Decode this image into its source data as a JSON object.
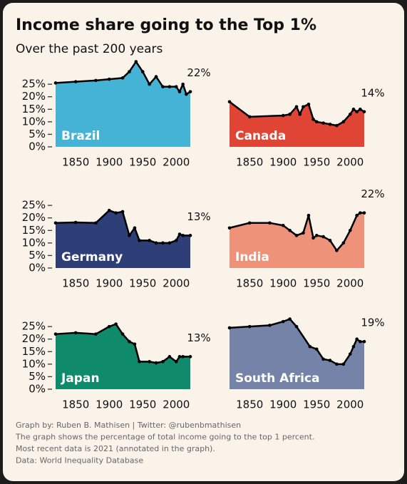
{
  "title": "Income share going to the Top 1%",
  "subtitle": "Over the past 200 years",
  "footer": [
    "Graph by: Ruben B. Mathisen | Twitter: @rubenbmathisen",
    "The graph shows the percentage of total income going to the top 1 percent.",
    "Most recent data is 2021 (annotated in the graph).",
    "Data: World Inequality Database"
  ],
  "chart_data": [
    {
      "type": "area",
      "title": "Brazil",
      "color": "#45b3d6",
      "end_label": "22%",
      "x": [
        1820,
        1850,
        1880,
        1900,
        1920,
        1930,
        1940,
        1950,
        1960,
        1970,
        1980,
        1990,
        2000,
        2005,
        2010,
        2015,
        2021
      ],
      "values": [
        25.5,
        26,
        26.5,
        27,
        27.5,
        30,
        34,
        30,
        25,
        28,
        24,
        24,
        24,
        22,
        25,
        21,
        22
      ],
      "xlim": [
        1820,
        2021
      ],
      "xticks": [
        1850,
        1900,
        1950,
        2000
      ],
      "ylim": [
        0,
        35
      ],
      "yticks": [
        {
          "value": 0,
          "label": "0%"
        },
        {
          "value": 5,
          "label": "5%"
        },
        {
          "value": 10,
          "label": "10%"
        },
        {
          "value": 15,
          "label": "15%"
        },
        {
          "value": 20,
          "label": "20%"
        },
        {
          "value": 25,
          "label": "25%"
        }
      ]
    },
    {
      "type": "area",
      "title": "Canada",
      "color": "#e04434",
      "end_label": "14%",
      "x": [
        1820,
        1850,
        1900,
        1910,
        1920,
        1925,
        1930,
        1938,
        1945,
        1950,
        1960,
        1970,
        1980,
        1990,
        2000,
        2005,
        2010,
        2015,
        2021
      ],
      "values": [
        18,
        12,
        12.5,
        13,
        16,
        13,
        16,
        17,
        11,
        10,
        9.5,
        9,
        8.5,
        10,
        13,
        15,
        14,
        15,
        14
      ],
      "xlim": [
        1820,
        2021
      ],
      "xticks": [
        1850,
        1900,
        1950,
        2000
      ],
      "ylim": [
        0,
        35
      ]
    },
    {
      "type": "area",
      "title": "Germany",
      "color": "#2e3f78",
      "end_label": "13%",
      "x": [
        1820,
        1850,
        1880,
        1900,
        1910,
        1920,
        1930,
        1938,
        1945,
        1960,
        1970,
        1980,
        1990,
        2000,
        2005,
        2010,
        2021
      ],
      "values": [
        18,
        18.2,
        18,
        23,
        22,
        22.5,
        13,
        16,
        11,
        11,
        10,
        10,
        10,
        11,
        13.5,
        13,
        13
      ],
      "xlim": [
        1820,
        2021
      ],
      "xticks": [
        1850,
        1900,
        1950,
        2000
      ],
      "ylim": [
        0,
        35
      ],
      "yticks": [
        {
          "value": 0,
          "label": "0%"
        },
        {
          "value": 5,
          "label": "5%"
        },
        {
          "value": 10,
          "label": "10%"
        },
        {
          "value": 15,
          "label": "15%"
        },
        {
          "value": 20,
          "label": "20%"
        },
        {
          "value": 25,
          "label": "25%"
        }
      ]
    },
    {
      "type": "area",
      "title": "India",
      "color": "#ef927a",
      "end_label": "22%",
      "x": [
        1820,
        1850,
        1880,
        1900,
        1910,
        1920,
        1930,
        1938,
        1945,
        1950,
        1960,
        1970,
        1980,
        1990,
        2000,
        2010,
        2015,
        2021
      ],
      "values": [
        16,
        18,
        18,
        17,
        15,
        13,
        14,
        21,
        12,
        13,
        12.5,
        11,
        7,
        10,
        15,
        21,
        22,
        22
      ],
      "xlim": [
        1820,
        2021
      ],
      "xticks": [
        1850,
        1900,
        1950,
        2000
      ],
      "ylim": [
        0,
        35
      ]
    },
    {
      "type": "area",
      "title": "Japan",
      "color": "#0f8a6a",
      "end_label": "13%",
      "x": [
        1820,
        1850,
        1880,
        1900,
        1910,
        1920,
        1930,
        1938,
        1945,
        1960,
        1970,
        1980,
        1990,
        2000,
        2005,
        2010,
        2021
      ],
      "values": [
        22,
        22.5,
        22,
        25,
        26,
        22,
        19,
        18,
        11,
        11,
        10.5,
        11,
        13,
        11,
        13,
        13,
        13
      ],
      "xlim": [
        1820,
        2021
      ],
      "xticks": [
        1850,
        1900,
        1950,
        2000
      ],
      "ylim": [
        0,
        35
      ],
      "yticks": [
        {
          "value": 0,
          "label": "0%"
        },
        {
          "value": 5,
          "label": "5%"
        },
        {
          "value": 10,
          "label": "10%"
        },
        {
          "value": 15,
          "label": "15%"
        },
        {
          "value": 20,
          "label": "20%"
        },
        {
          "value": 25,
          "label": "25%"
        }
      ]
    },
    {
      "type": "area",
      "title": "South Africa",
      "color": "#7583a8",
      "end_label": "19%",
      "x": [
        1820,
        1850,
        1880,
        1900,
        1910,
        1920,
        1940,
        1950,
        1960,
        1970,
        1980,
        1990,
        2000,
        2005,
        2010,
        2015,
        2021
      ],
      "values": [
        24.5,
        25,
        25.5,
        27,
        28,
        25,
        17,
        16,
        12,
        11.5,
        10,
        10,
        14,
        17,
        20,
        19,
        19
      ],
      "xlim": [
        1820,
        2021
      ],
      "xticks": [
        1850,
        1900,
        1950,
        2000
      ],
      "ylim": [
        0,
        35
      ]
    }
  ]
}
